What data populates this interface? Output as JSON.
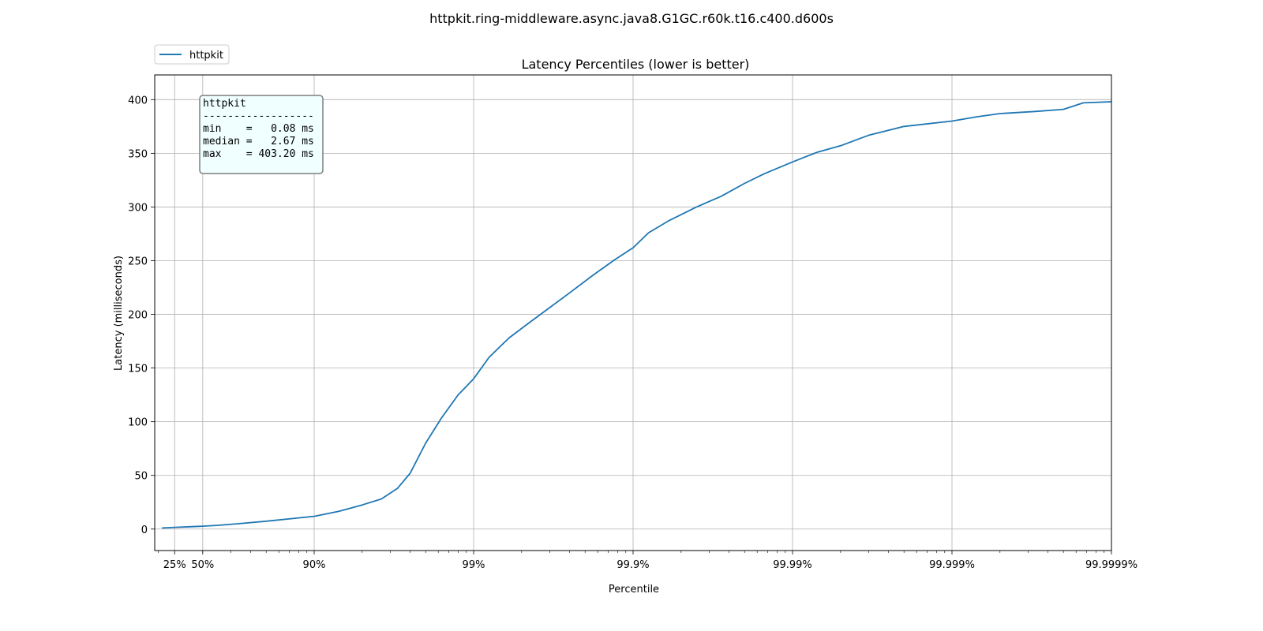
{
  "chart_data": {
    "type": "line",
    "suptitle": "httpkit.ring-middleware.async.java8.G1GC.r60k.t16.c400.d600s",
    "title": "Latency Percentiles (lower is better)",
    "xlabel": "Percentile",
    "ylabel": "Latency (milliseconds)",
    "x_scale": "log(1/(1-percentile))",
    "xlim_percent": [
      0,
      99.9999
    ],
    "ylim": [
      -20,
      423
    ],
    "grid": true,
    "x_tick_labels": [
      "25%",
      "50%",
      "90%",
      "99%",
      "99.9%",
      "99.99%",
      "99.999%",
      "99.9999%"
    ],
    "x_tick_values": [
      25,
      50,
      90,
      99,
      99.9,
      99.99,
      99.999,
      99.9999
    ],
    "y_ticks": [
      0,
      50,
      100,
      150,
      200,
      250,
      300,
      350,
      400
    ],
    "legend": {
      "placement": "top-left, outside plot",
      "entries": [
        "httpkit"
      ]
    },
    "stats_box": {
      "lines": [
        "httpkit",
        "------------------",
        "min    =   0.08 ms",
        "median =   2.67 ms",
        "max    = 403.20 ms"
      ]
    },
    "series": [
      {
        "name": "httpkit",
        "color": "#1f77b4",
        "points": [
          [
            10,
            1.0
          ],
          [
            25,
            1.6
          ],
          [
            40,
            2.2
          ],
          [
            50,
            2.7
          ],
          [
            60,
            3.5
          ],
          [
            70,
            5.0
          ],
          [
            80,
            7.3
          ],
          [
            90,
            11.9
          ],
          [
            93,
            16.5
          ],
          [
            95,
            22.5
          ],
          [
            96.2,
            28.0
          ],
          [
            97,
            38.0
          ],
          [
            97.5,
            52.0
          ],
          [
            98,
            80.0
          ],
          [
            98.4,
            103.0
          ],
          [
            98.75,
            125.0
          ],
          [
            99.0,
            140.0
          ],
          [
            99.2,
            160.0
          ],
          [
            99.4,
            178.0
          ],
          [
            99.55,
            192.0
          ],
          [
            99.65,
            204.0
          ],
          [
            99.75,
            220.0
          ],
          [
            99.82,
            236.0
          ],
          [
            99.87,
            251.0
          ],
          [
            99.9,
            262.0
          ],
          [
            99.92,
            276.0
          ],
          [
            99.94,
            287.0
          ],
          [
            99.96,
            300.0
          ],
          [
            99.972,
            310.0
          ],
          [
            99.98,
            322.0
          ],
          [
            99.985,
            331.0
          ],
          [
            99.99,
            342.0
          ],
          [
            99.993,
            351.0
          ],
          [
            99.995,
            357.0
          ],
          [
            99.9967,
            367.0
          ],
          [
            99.998,
            375.0
          ],
          [
            99.999,
            380.0
          ],
          [
            99.9993,
            384.0
          ],
          [
            99.9995,
            387.0
          ],
          [
            99.9997,
            389.0
          ],
          [
            99.9998,
            391.0
          ],
          [
            99.99985,
            397.0
          ],
          [
            99.9999,
            398.0
          ]
        ]
      }
    ]
  }
}
